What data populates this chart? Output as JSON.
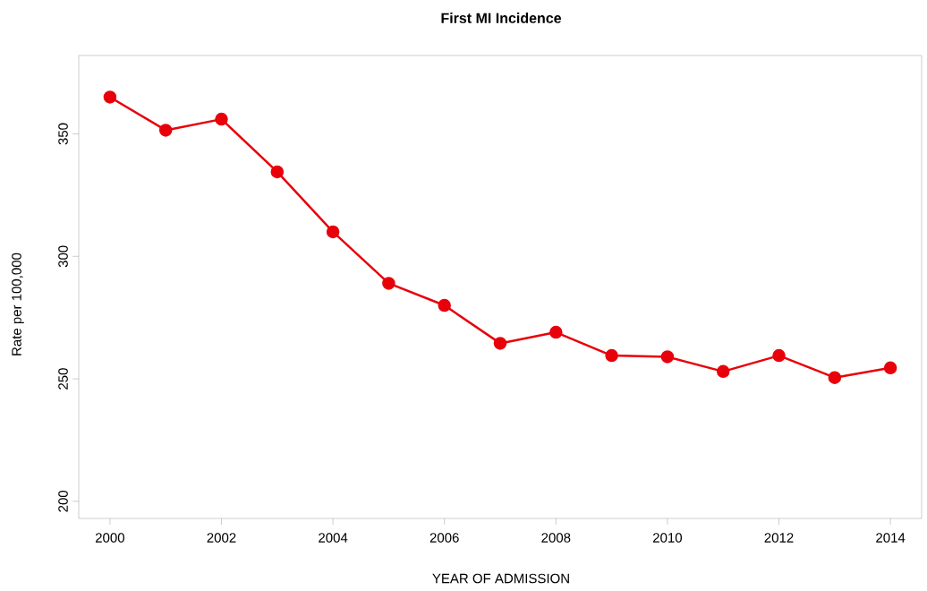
{
  "chart_data": {
    "type": "line",
    "title": "First MI Incidence",
    "xlabel": "YEAR OF ADMISSION",
    "ylabel": "Rate per 100,000",
    "x": [
      2000,
      2001,
      2002,
      2003,
      2004,
      2005,
      2006,
      2007,
      2008,
      2009,
      2010,
      2011,
      2012,
      2013,
      2014
    ],
    "series": [
      {
        "color": "#e8000b",
        "values": [
          365,
          351.5,
          356,
          334.5,
          310,
          289,
          280,
          264.5,
          269,
          259.5,
          259,
          253,
          259.5,
          250.5,
          254.5
        ]
      }
    ],
    "xlim": [
      1999.44,
      2014.56
    ],
    "ylim": [
      193,
      382
    ],
    "xticks": [
      2000,
      2002,
      2004,
      2006,
      2008,
      2010,
      2012,
      2014
    ],
    "yticks": [
      200,
      250,
      300,
      350
    ],
    "marker": "circle",
    "line_style": "solid",
    "grid": false
  }
}
